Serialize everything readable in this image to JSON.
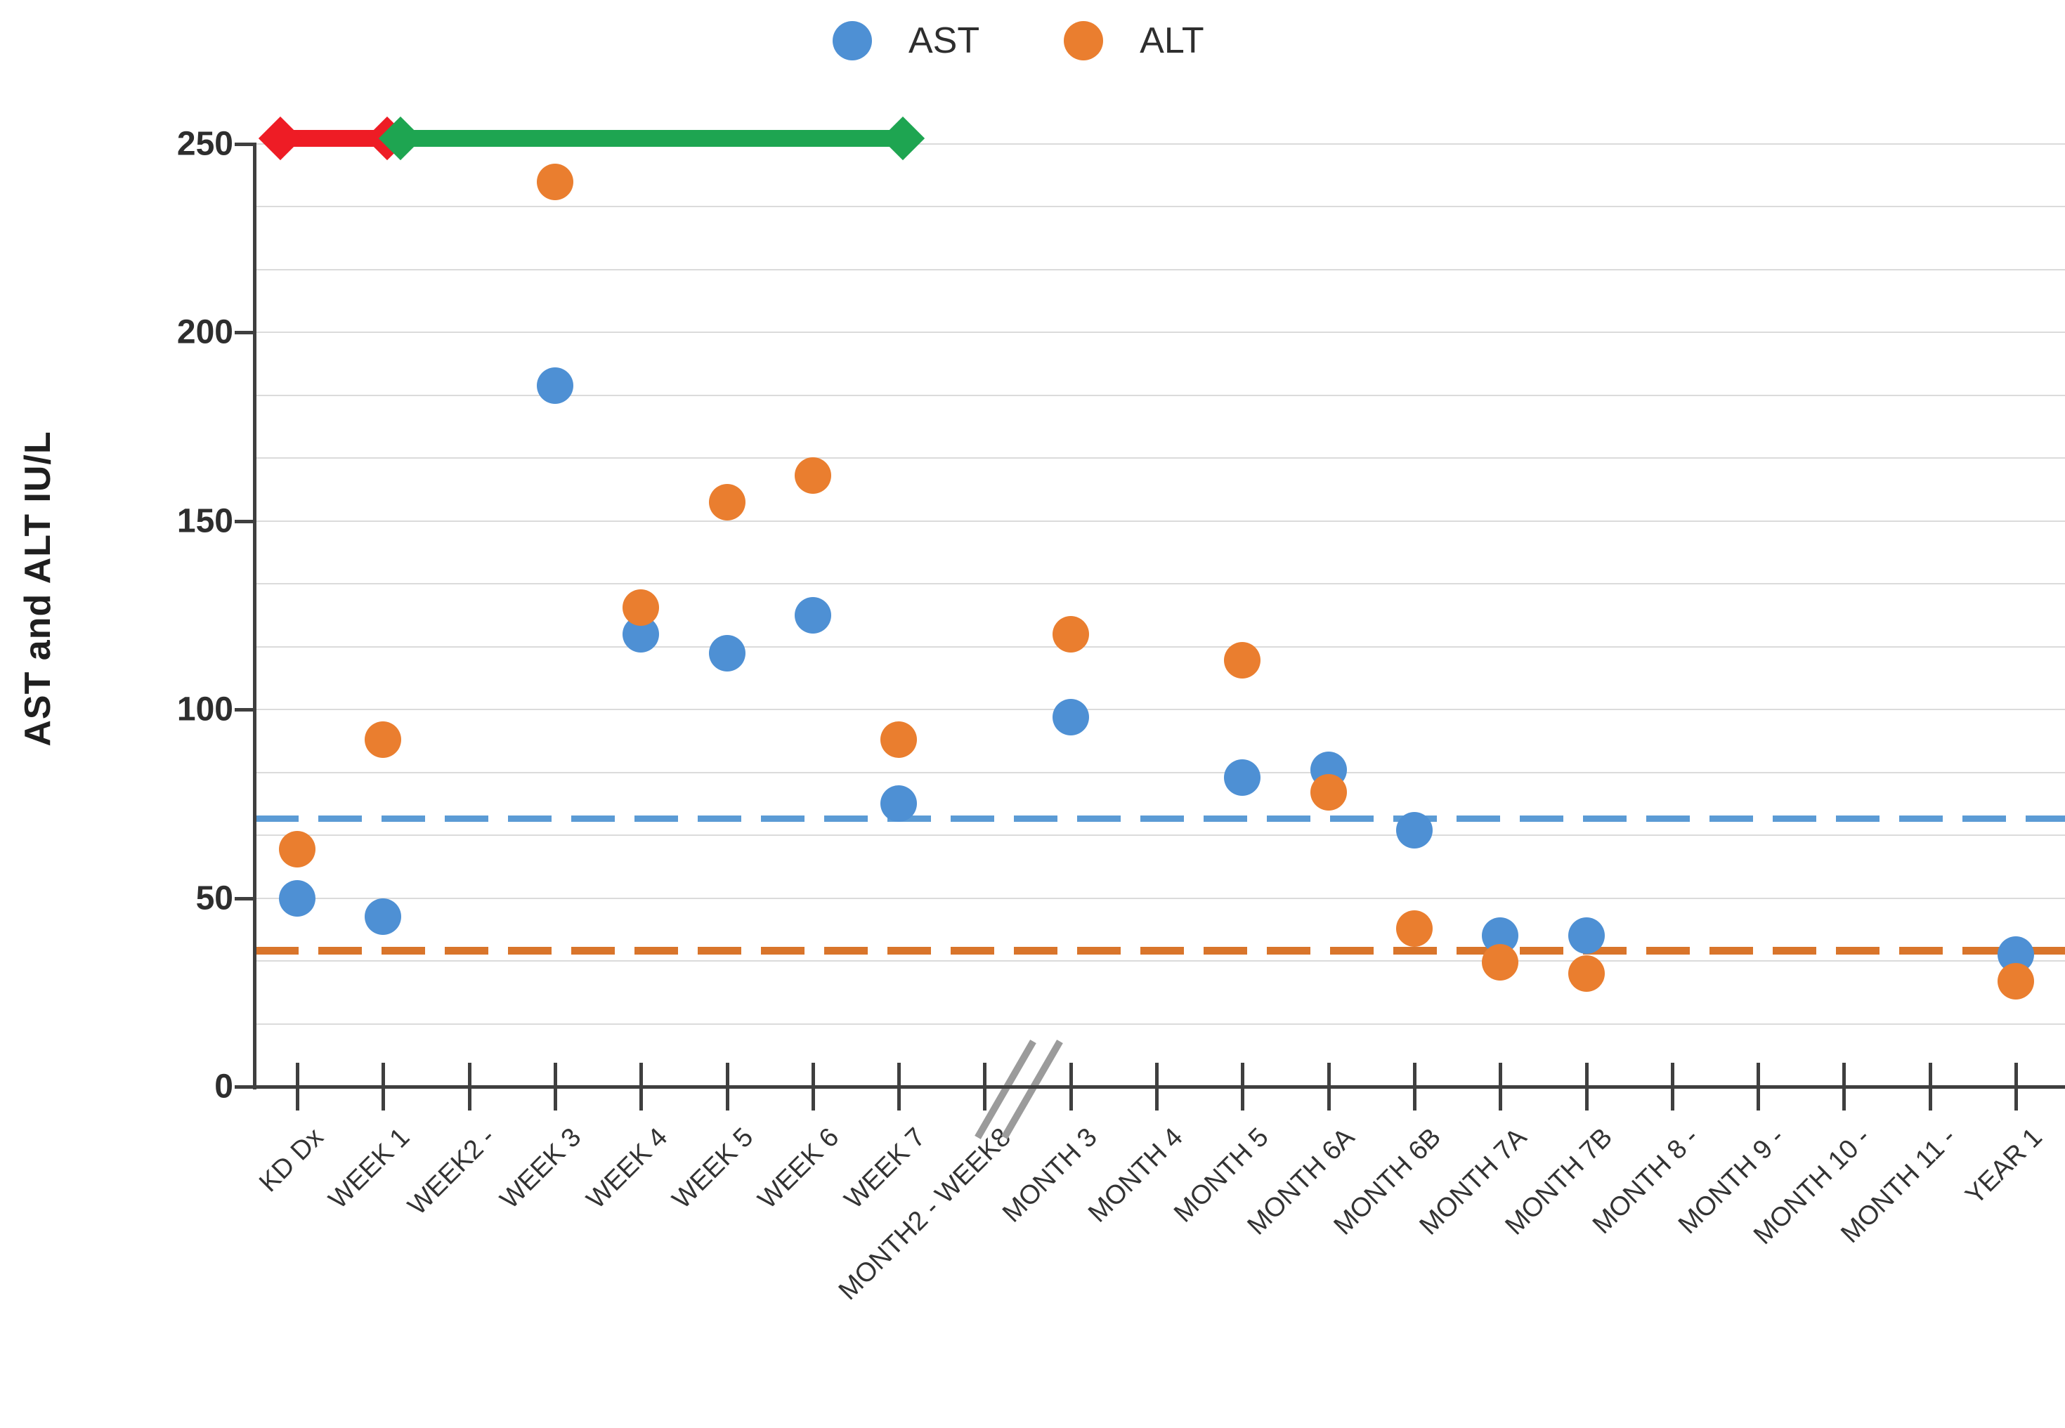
{
  "chart_data": {
    "type": "scatter",
    "title": "",
    "ylabel": "AST and ALT IU/L",
    "ylim": [
      0,
      250
    ],
    "yticks": [
      0,
      50,
      100,
      150,
      200,
      250
    ],
    "minor_gridline_intervals": 15,
    "grid": "on",
    "legend_position": "top-center",
    "categories": [
      "KD Dx",
      "WEEK 1",
      "WEEK2 -",
      "WEEK 3",
      "WEEK 4",
      "WEEK 5",
      "WEEK 6",
      "WEEK 7",
      "MONTH2 - WEEK8",
      "MONTH 3",
      "MONTH 4",
      "MONTH 5",
      "MONTH 6A",
      "MONTH 6B",
      "MONTH 7A",
      "MONTH 7B",
      "MONTH 8 -",
      "MONTH 9 -",
      "MONTH 10 -",
      "MONTH 11 -",
      "YEAR 1"
    ],
    "series": [
      {
        "name": "AST",
        "color": "#4e90d4",
        "values": [
          50,
          45,
          null,
          186,
          120,
          115,
          125,
          75,
          null,
          98,
          null,
          82,
          84,
          68,
          40,
          40,
          null,
          null,
          null,
          null,
          35
        ]
      },
      {
        "name": "ALT",
        "color": "#ea7e2f",
        "values": [
          63,
          92,
          null,
          240,
          127,
          155,
          162,
          92,
          null,
          120,
          null,
          113,
          78,
          42,
          33,
          30,
          null,
          null,
          null,
          null,
          28
        ]
      }
    ],
    "reference_lines": [
      {
        "series": "AST",
        "value": 71,
        "color": "#5b9bd5",
        "style": "dashed"
      },
      {
        "series": "ALT",
        "value": 36,
        "color": "#d9752b",
        "style": "dashed"
      }
    ],
    "annotations": {
      "arrows": [
        {
          "name": "red-double-arrow",
          "color": "#ee1c25",
          "from_category": -0.2,
          "to_category": 1.05,
          "at_value": 250,
          "spans": "KD Dx to WEEK 1"
        },
        {
          "name": "green-double-arrow",
          "color": "#1ea551",
          "from_category": 1.2,
          "to_category": 7.05,
          "at_value": 250,
          "spans": "WEEK 1 to WEEK 7"
        }
      ],
      "axis_break": {
        "between": [
          "MONTH2 - WEEK8",
          "MONTH 3"
        ],
        "category_position": 8.45
      }
    }
  }
}
